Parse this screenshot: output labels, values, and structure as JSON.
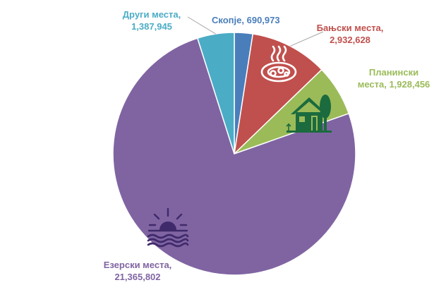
{
  "chart_data": {
    "type": "pie",
    "title": "",
    "start_angle_deg": 0,
    "direction": "clockwise",
    "slices": [
      {
        "name": "Скопје",
        "value": 690973,
        "label_name": "Скопје,",
        "label_value": "690,973",
        "color": "#4A7EBB",
        "icon": ""
      },
      {
        "name": "Бањски места",
        "value": 2932628,
        "label_name": "Бањски места,",
        "label_value": "2,932,628",
        "color": "#C0504D",
        "icon": "hot-spring-icon"
      },
      {
        "name": "Планински места",
        "value": 1928456,
        "label_name": "Планински",
        "label_value": "места, 1,928,456",
        "color": "#9BBB59",
        "icon": "mountain-house-icon"
      },
      {
        "name": "Езерски места",
        "value": 21365802,
        "label_name": "Езерски места,",
        "label_value": "21,365,802",
        "color": "#8064A2",
        "icon": "lake-sunset-icon"
      },
      {
        "name": "Други места",
        "value": 1387945,
        "label_name": "Други места,",
        "label_value": "1,387,945",
        "color": "#4BACC6",
        "icon": ""
      }
    ]
  }
}
